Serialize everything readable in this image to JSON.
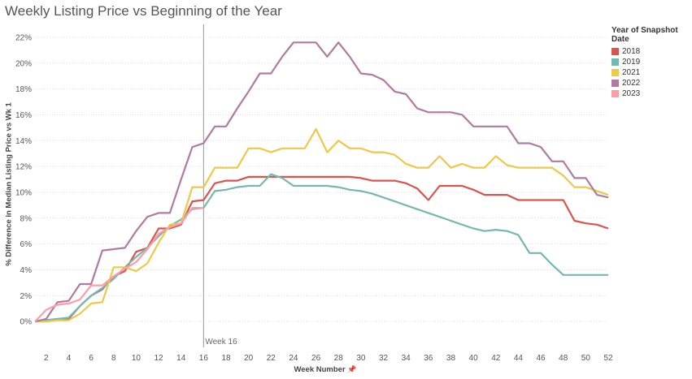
{
  "chart_data": {
    "type": "line",
    "title": "Weekly Listing Price vs Beginning of the Year",
    "xlabel": "Week Number",
    "xlabel_icon": "pin-icon",
    "ylabel": "% Difference in Median Listing Price vs Wk 1",
    "xlim": [
      1,
      52
    ],
    "ylim": [
      -2,
      23
    ],
    "x_ticks": [
      2,
      4,
      6,
      8,
      10,
      12,
      14,
      16,
      18,
      20,
      22,
      24,
      26,
      28,
      30,
      32,
      34,
      36,
      38,
      40,
      42,
      44,
      46,
      48,
      50,
      52
    ],
    "y_ticks": [
      0,
      2,
      4,
      6,
      8,
      10,
      12,
      14,
      16,
      18,
      20,
      22
    ],
    "y_tick_format": "percent",
    "grid": "horizontal dotted",
    "legend": {
      "title": "Year of Snapshot Date",
      "position": "top-right"
    },
    "reference_line": {
      "x": 16,
      "label": "Week 16",
      "color": "#999999"
    },
    "series": [
      {
        "name": "2018",
        "color": "#d9534f",
        "x": [
          1,
          2,
          3,
          4,
          5,
          6,
          7,
          8,
          9,
          10,
          11,
          12,
          13,
          14,
          15,
          16,
          17,
          18,
          19,
          20,
          21,
          22,
          23,
          24,
          25,
          26,
          27,
          28,
          29,
          30,
          31,
          32,
          33,
          34,
          35,
          36,
          37,
          38,
          39,
          40,
          41,
          42,
          43,
          44,
          45,
          46,
          47,
          48,
          49,
          50,
          51,
          52
        ],
        "values": [
          0,
          0.1,
          0.2,
          0.2,
          1.2,
          2.0,
          2.5,
          3.5,
          3.9,
          5.4,
          5.7,
          7.2,
          7.2,
          7.5,
          9.3,
          9.4,
          10.7,
          10.9,
          10.9,
          11.2,
          11.2,
          11.2,
          11.2,
          11.2,
          11.2,
          11.2,
          11.2,
          11.2,
          11.2,
          11.1,
          10.9,
          10.9,
          10.9,
          10.7,
          10.3,
          9.4,
          10.5,
          10.5,
          10.5,
          10.2,
          9.8,
          9.8,
          9.8,
          9.4,
          9.4,
          9.4,
          9.4,
          9.4,
          7.8,
          7.6,
          7.5,
          7.2
        ]
      },
      {
        "name": "2019",
        "color": "#76b7b2",
        "x": [
          1,
          2,
          3,
          4,
          5,
          6,
          7,
          8,
          9,
          10,
          11,
          12,
          13,
          14,
          15,
          16,
          17,
          18,
          19,
          20,
          21,
          22,
          23,
          24,
          25,
          26,
          27,
          28,
          29,
          30,
          31,
          32,
          33,
          34,
          35,
          36,
          37,
          38,
          39,
          40,
          41,
          42,
          43,
          44,
          45,
          46,
          47,
          48,
          49,
          50,
          51,
          52
        ],
        "values": [
          0,
          0.1,
          0.2,
          0.3,
          1.2,
          2.0,
          2.6,
          3.3,
          4.2,
          5.0,
          5.7,
          6.6,
          7.4,
          7.9,
          8.7,
          8.8,
          10.1,
          10.2,
          10.4,
          10.5,
          10.5,
          11.4,
          11.1,
          10.5,
          10.5,
          10.5,
          10.5,
          10.4,
          10.2,
          10.1,
          9.9,
          9.6,
          9.3,
          9.0,
          8.7,
          8.4,
          8.1,
          7.8,
          7.5,
          7.2,
          7.0,
          7.1,
          7.0,
          6.7,
          5.3,
          5.3,
          4.4,
          3.6,
          3.6,
          3.6,
          3.6,
          3.6
        ]
      },
      {
        "name": "2021",
        "color": "#edc948",
        "x": [
          1,
          2,
          3,
          4,
          5,
          6,
          7,
          8,
          9,
          10,
          11,
          12,
          13,
          14,
          15,
          16,
          17,
          18,
          19,
          20,
          21,
          22,
          23,
          24,
          25,
          26,
          27,
          28,
          29,
          30,
          31,
          32,
          33,
          34,
          35,
          36,
          37,
          38,
          39,
          40,
          41,
          42,
          43,
          44,
          45,
          46,
          47,
          48,
          49,
          50,
          51,
          52
        ],
        "values": [
          0,
          0,
          0.1,
          0.1,
          0.6,
          1.4,
          1.5,
          4.2,
          4.2,
          3.9,
          4.5,
          6.1,
          7.5,
          7.6,
          10.4,
          10.4,
          11.9,
          11.9,
          11.9,
          13.4,
          13.4,
          13.1,
          13.4,
          13.4,
          13.4,
          14.9,
          13.1,
          14.0,
          13.4,
          13.4,
          13.1,
          13.1,
          12.9,
          12.2,
          11.9,
          11.9,
          12.8,
          11.9,
          12.2,
          11.9,
          11.9,
          12.8,
          12.1,
          11.9,
          11.9,
          11.9,
          11.9,
          11.3,
          10.4,
          10.4,
          10.1,
          9.8
        ]
      },
      {
        "name": "2022",
        "color": "#b07aa1",
        "x": [
          1,
          2,
          3,
          4,
          5,
          6,
          7,
          8,
          9,
          10,
          11,
          12,
          13,
          14,
          15,
          16,
          17,
          18,
          19,
          20,
          21,
          22,
          23,
          24,
          25,
          26,
          27,
          28,
          29,
          30,
          31,
          32,
          33,
          34,
          35,
          36,
          37,
          38,
          39,
          40,
          41,
          42,
          43,
          44,
          45,
          46,
          47,
          48,
          49,
          50,
          51,
          52
        ],
        "values": [
          0,
          0.2,
          1.5,
          1.6,
          2.9,
          2.9,
          5.5,
          5.6,
          5.7,
          7.0,
          8.1,
          8.4,
          8.4,
          11.0,
          13.5,
          13.8,
          15.1,
          15.1,
          16.5,
          17.8,
          19.2,
          19.2,
          20.5,
          21.6,
          21.6,
          21.6,
          20.5,
          21.6,
          20.5,
          19.2,
          19.1,
          18.7,
          17.8,
          17.6,
          16.5,
          16.2,
          16.2,
          16.2,
          16.0,
          15.1,
          15.1,
          15.1,
          15.1,
          13.8,
          13.8,
          13.5,
          12.4,
          12.4,
          11.1,
          11.1,
          9.8,
          9.6
        ]
      },
      {
        "name": "2023",
        "color": "#ff9da7",
        "x": [
          1,
          2,
          3,
          4,
          5,
          6,
          7,
          8,
          9,
          10,
          11,
          12,
          13,
          14,
          15,
          16
        ],
        "values": [
          0,
          0.9,
          1.3,
          1.4,
          1.7,
          2.8,
          2.8,
          3.5,
          4.1,
          4.6,
          5.6,
          6.8,
          7.3,
          7.6,
          8.8,
          8.8
        ]
      }
    ]
  }
}
